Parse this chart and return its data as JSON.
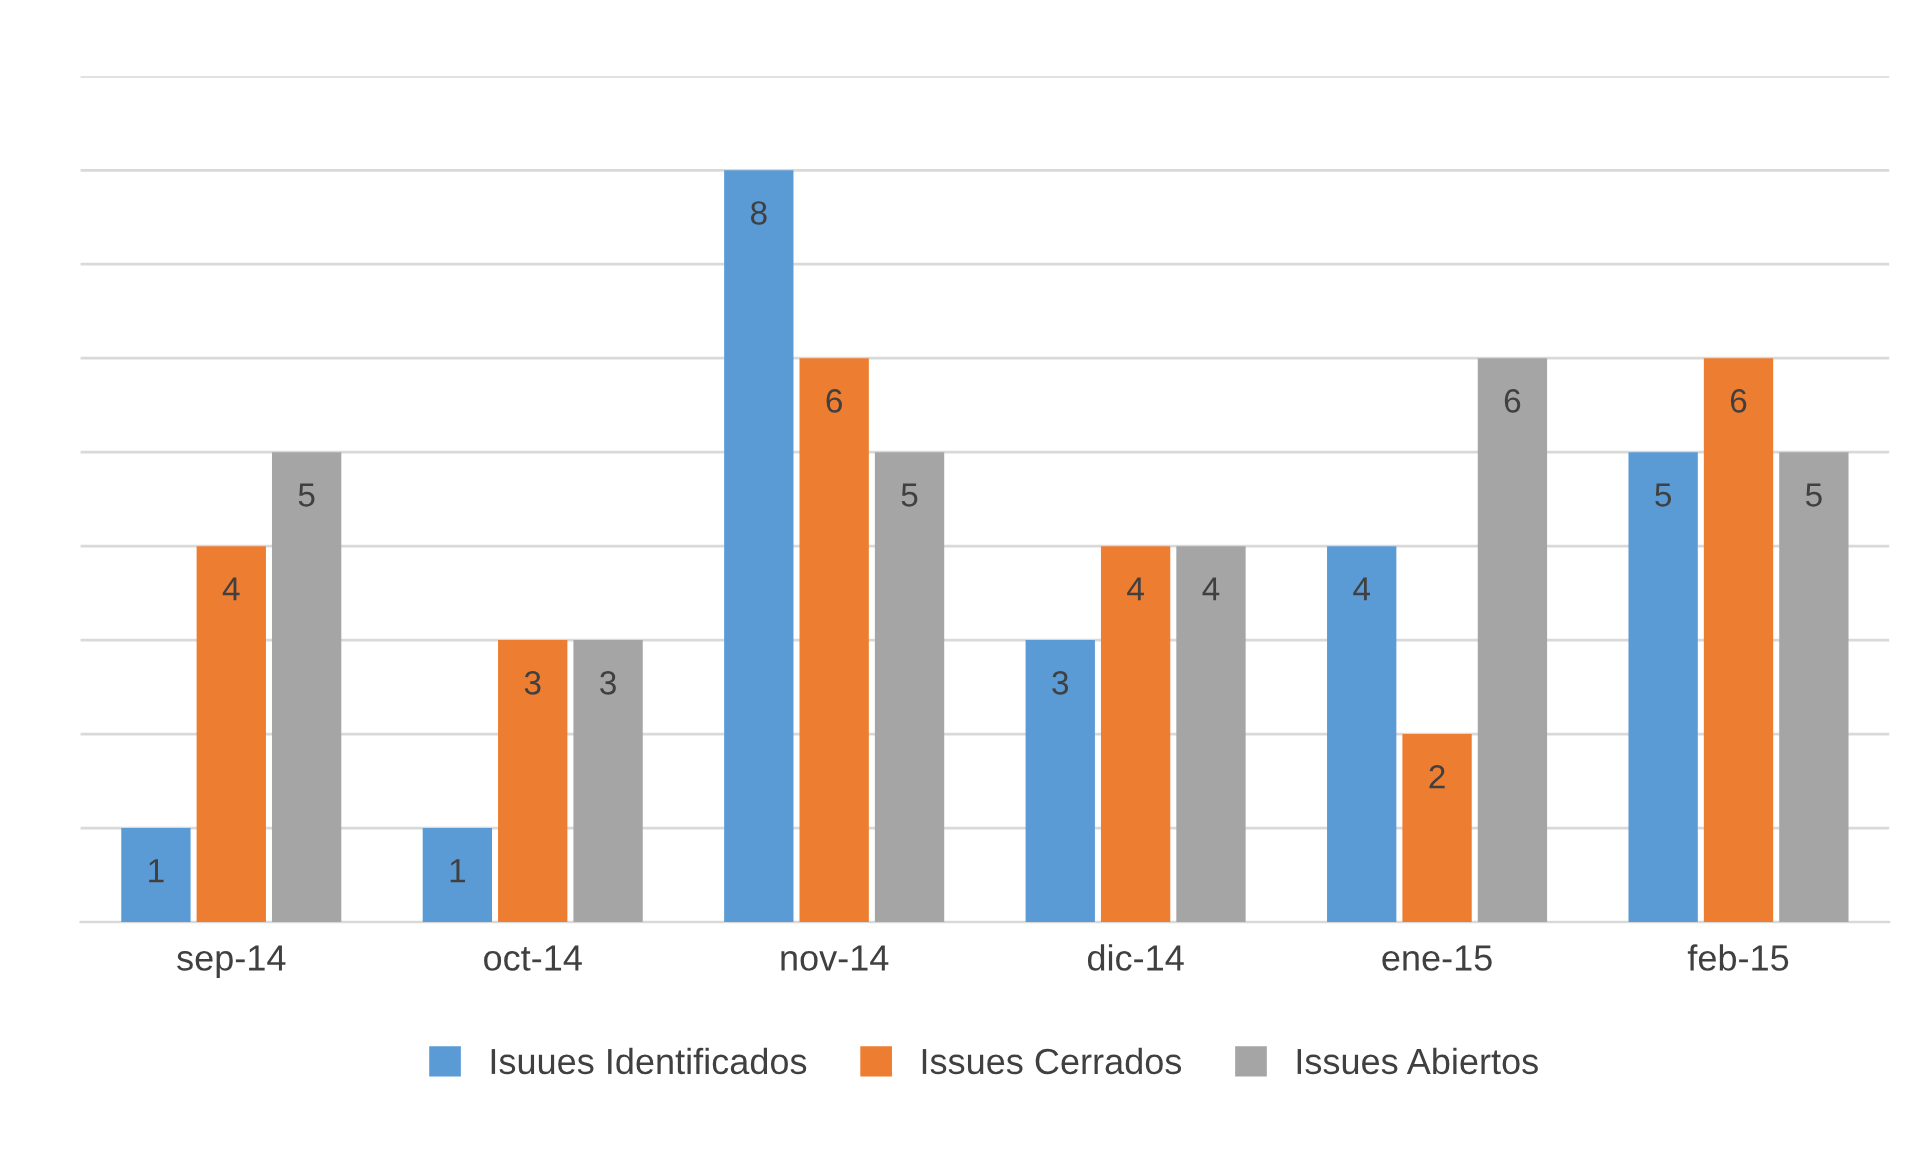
{
  "chart_data": {
    "type": "bar",
    "categories": [
      "sep-14",
      "oct-14",
      "nov-14",
      "dic-14",
      "ene-15",
      "feb-15"
    ],
    "series": [
      {
        "name": "Isuues Identificados",
        "color": "#5b9bd5",
        "values": [
          1,
          1,
          8,
          3,
          4,
          5
        ]
      },
      {
        "name": "Issues Cerrados",
        "color": "#ed7d31",
        "values": [
          4,
          3,
          6,
          4,
          2,
          6
        ]
      },
      {
        "name": "Issues Abiertos",
        "color": "#a5a5a5",
        "values": [
          5,
          3,
          5,
          4,
          6,
          5
        ]
      }
    ],
    "ylim": [
      0,
      9
    ],
    "yticks": [
      {
        "value": 0,
        "label": null
      },
      {
        "value": 1,
        "label": null
      },
      {
        "value": 2,
        "label": null
      },
      {
        "value": 3,
        "label": null
      },
      {
        "value": 4,
        "label": null
      },
      {
        "value": 5,
        "label": null
      },
      {
        "value": 6,
        "label": null
      },
      {
        "value": 7,
        "label": null
      },
      {
        "value": 8,
        "label": null
      },
      {
        "value": 9,
        "label": null
      }
    ],
    "tick_labels": "x",
    "grid": "y",
    "legend": "bottom",
    "data_labels": true
  }
}
